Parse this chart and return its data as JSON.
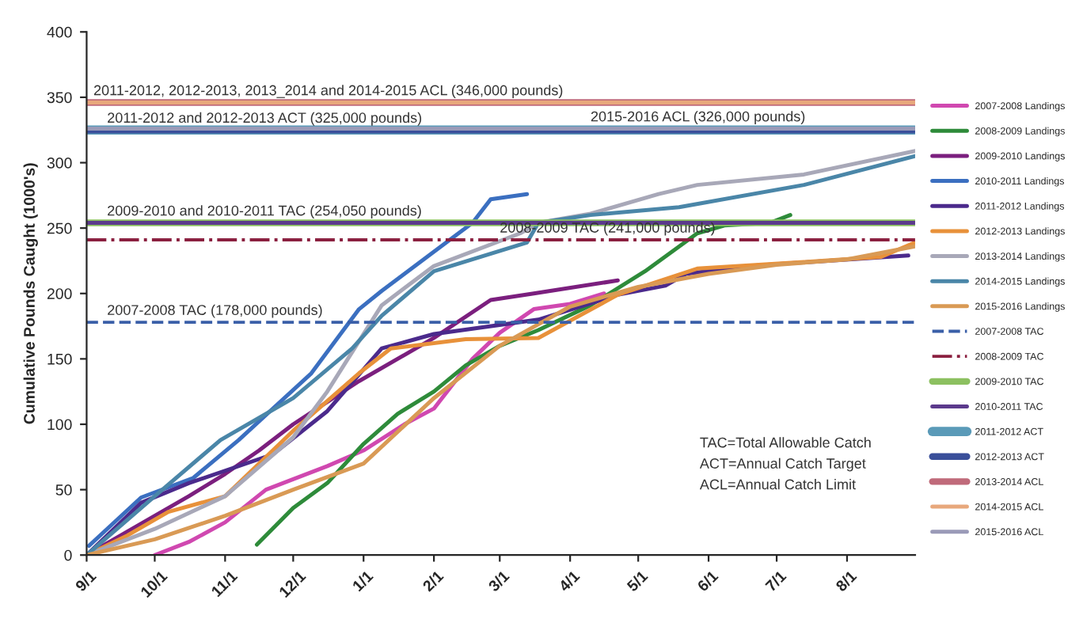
{
  "chart_data": {
    "type": "line",
    "ylabel": "Cumulative Pounds Caught (1000's)",
    "xlim": [
      "2015-09-01",
      "2016-08-31"
    ],
    "xticks": [
      {
        "value": "2015-09-01",
        "label": "9/1"
      },
      {
        "value": "2015-10-01",
        "label": "10/1"
      },
      {
        "value": "2015-11-01",
        "label": "11/1"
      },
      {
        "value": "2015-12-01",
        "label": "12/1"
      },
      {
        "value": "2016-01-01",
        "label": "1/1"
      },
      {
        "value": "2016-02-01",
        "label": "2/1"
      },
      {
        "value": "2016-03-01",
        "label": "3/1"
      },
      {
        "value": "2016-04-01",
        "label": "4/1"
      },
      {
        "value": "2016-05-01",
        "label": "5/1"
      },
      {
        "value": "2016-06-01",
        "label": "6/1"
      },
      {
        "value": "2016-07-01",
        "label": "7/1"
      },
      {
        "value": "2016-08-01",
        "label": "8/1"
      }
    ],
    "ylim": [
      0,
      400
    ],
    "yticks": [
      0,
      50,
      100,
      150,
      200,
      250,
      300,
      350,
      400
    ],
    "grid": false,
    "legend": "right",
    "series": [
      {
        "name": "2007-2008 Landings",
        "color": "#d048b0",
        "line_style": "solid",
        "x": [
          "2015-10-01",
          "2015-10-16",
          "2015-11-01",
          "2015-11-19",
          "2015-12-01",
          "2015-12-16",
          "2016-01-01",
          "2016-01-19",
          "2016-02-01",
          "2016-02-18",
          "2016-03-01",
          "2016-03-16",
          "2016-04-01",
          "2016-04-16"
        ],
        "values": [
          0,
          10,
          25,
          50,
          58,
          68,
          80,
          100,
          112,
          150,
          170,
          188,
          192,
          200
        ]
      },
      {
        "name": "2008-2009 Landings",
        "color": "#2e8b3a",
        "line_style": "solid",
        "x": [
          "2015-11-15",
          "2015-12-01",
          "2015-12-16",
          "2016-01-01",
          "2016-01-16",
          "2016-02-01",
          "2016-02-15",
          "2016-03-01",
          "2016-03-18",
          "2016-04-10",
          "2016-05-04",
          "2016-05-27",
          "2016-06-08",
          "2016-06-28",
          "2016-07-07"
        ],
        "values": [
          8,
          36,
          55,
          85,
          108,
          125,
          145,
          160,
          172,
          191,
          217,
          246,
          252,
          254,
          260
        ]
      },
      {
        "name": "2009-2010 Landings",
        "color": "#7b1f7e",
        "line_style": "solid",
        "x": [
          "2015-09-01",
          "2015-09-16",
          "2015-10-01",
          "2015-10-16",
          "2015-11-01",
          "2015-11-16",
          "2015-12-01",
          "2015-12-30",
          "2016-02-01",
          "2016-02-26",
          "2016-03-16",
          "2016-04-22"
        ],
        "values": [
          0,
          15,
          30,
          45,
          62,
          80,
          100,
          133,
          166,
          195,
          200,
          210
        ]
      },
      {
        "name": "2010-2011 Landings",
        "color": "#3b6fc0",
        "line_style": "solid",
        "x": [
          "2015-09-02",
          "2015-09-25",
          "2015-10-18",
          "2015-11-07",
          "2015-12-09",
          "2015-12-30",
          "2016-01-09",
          "2016-02-01",
          "2016-02-18",
          "2016-02-26",
          "2016-03-13"
        ],
        "values": [
          7,
          44,
          59,
          88,
          139,
          188,
          202,
          232,
          254,
          272,
          276
        ]
      },
      {
        "name": "2011-2012 Landings",
        "color": "#4b2a8c",
        "line_style": "solid",
        "x": [
          "2015-09-01",
          "2015-09-25",
          "2015-10-16",
          "2015-11-22",
          "2015-12-16",
          "2016-01-09",
          "2016-02-01",
          "2016-03-18",
          "2016-04-22",
          "2016-05-13",
          "2016-05-22",
          "2016-06-19",
          "2016-08-28"
        ],
        "values": [
          0,
          40,
          55,
          77,
          110,
          158,
          169,
          180,
          199,
          206,
          215,
          221,
          229
        ]
      },
      {
        "name": "2012-2013 Landings",
        "color": "#e8913a",
        "line_style": "solid",
        "x": [
          "2015-09-01",
          "2015-09-19",
          "2015-10-07",
          "2015-11-01",
          "2015-12-01",
          "2015-12-30",
          "2016-01-13",
          "2016-02-15",
          "2016-03-18",
          "2016-04-22",
          "2016-05-27",
          "2016-07-13",
          "2016-08-16",
          "2016-08-31"
        ],
        "values": [
          0,
          15,
          33,
          45,
          95,
          139,
          158,
          165,
          166,
          199,
          219,
          224,
          228,
          239
        ]
      },
      {
        "name": "2013-2014 Landings",
        "color": "#a8a8b8",
        "line_style": "solid",
        "x": [
          "2015-09-01",
          "2015-10-01",
          "2015-11-01",
          "2015-12-01",
          "2015-12-16",
          "2016-01-09",
          "2016-02-01",
          "2016-03-10",
          "2016-03-18",
          "2016-04-10",
          "2016-05-10",
          "2016-05-27",
          "2016-07-13",
          "2016-08-31"
        ],
        "values": [
          0,
          20,
          45,
          90,
          125,
          191,
          221,
          246,
          254,
          261,
          276,
          283,
          291,
          309
        ]
      },
      {
        "name": "2014-2015 Landings",
        "color": "#4a86a8",
        "line_style": "solid",
        "x": [
          "2015-09-01",
          "2015-10-01",
          "2015-10-30",
          "2015-12-01",
          "2015-12-27",
          "2016-01-09",
          "2016-02-01",
          "2016-03-13",
          "2016-03-18",
          "2016-04-10",
          "2016-05-19",
          "2016-07-13",
          "2016-08-31"
        ],
        "values": [
          0,
          45,
          88,
          120,
          158,
          183,
          217,
          239,
          254,
          260,
          266,
          283,
          305
        ]
      },
      {
        "name": "2015-2016 Landings",
        "color": "#d99a55",
        "line_style": "solid",
        "x": [
          "2015-09-01",
          "2015-10-01",
          "2015-11-01",
          "2015-12-01",
          "2016-01-01",
          "2016-02-01",
          "2016-03-01",
          "2016-04-01",
          "2016-05-01",
          "2016-06-01",
          "2016-07-01",
          "2016-08-01",
          "2016-08-31"
        ],
        "values": [
          0,
          12,
          30,
          50,
          70,
          120,
          160,
          190,
          205,
          215,
          222,
          226,
          236
        ]
      },
      {
        "name": "2007-2008 TAC",
        "color": "#3a5fa8",
        "line_style": "dashed",
        "x": [
          "2015-09-01",
          "2016-08-31"
        ],
        "values": [
          178,
          178
        ]
      },
      {
        "name": "2008-2009 TAC",
        "color": "#8b2040",
        "line_style": "dashdot",
        "x": [
          "2015-09-01",
          "2016-08-31"
        ],
        "values": [
          241,
          241
        ]
      },
      {
        "name": "2009-2010 TAC",
        "color": "#8cc060",
        "line_style": "solid",
        "x": [
          "2015-09-01",
          "2016-08-31"
        ],
        "values": [
          254,
          254
        ]
      },
      {
        "name": "2010-2011 TAC",
        "color": "#5b3a8c",
        "line_style": "solid",
        "x": [
          "2015-09-01",
          "2016-08-31"
        ],
        "values": [
          254,
          254
        ]
      },
      {
        "name": "2011-2012 ACT",
        "color": "#5a9ab8",
        "line_style": "solid",
        "x": [
          "2015-09-01",
          "2016-08-31"
        ],
        "values": [
          325,
          325
        ]
      },
      {
        "name": "2012-2013 ACT",
        "color": "#3a4f9a",
        "line_style": "solid",
        "x": [
          "2015-09-01",
          "2016-08-31"
        ],
        "values": [
          325,
          325
        ]
      },
      {
        "name": "2013-2014 ACL",
        "color": "#c06a7a",
        "line_style": "solid",
        "x": [
          "2015-09-01",
          "2016-08-31"
        ],
        "values": [
          346,
          346
        ]
      },
      {
        "name": "2014-2015 ACL",
        "color": "#e8a87c",
        "line_style": "solid",
        "x": [
          "2015-09-01",
          "2016-08-31"
        ],
        "values": [
          346,
          346
        ]
      },
      {
        "name": "2015-2016 ACL",
        "color": "#9a9ab8",
        "line_style": "solid",
        "x": [
          "2015-09-01",
          "2016-08-31"
        ],
        "values": [
          326,
          326
        ]
      }
    ],
    "annotations": [
      {
        "text": "2011-2012, 2012-2013, 2013_2014 and 2014-2015 ACL (346,000 pounds)",
        "x": "2015-09-04",
        "y": 346
      },
      {
        "text": "2011-2012 and 2012-2013 ACT (325,000 pounds)",
        "x": "2015-09-10",
        "y": 325
      },
      {
        "text": "2015-2016 ACL (326,000 pounds)",
        "x": "2016-04-10",
        "y": 326
      },
      {
        "text": "2009-2010 and 2010-2011 TAC (254,050 pounds)",
        "x": "2015-09-10",
        "y": 254
      },
      {
        "text": "2008-2009 TAC (241,000 pounds)",
        "x": "2016-03-01",
        "y": 241
      },
      {
        "text": "2007-2008 TAC (178,000 pounds)",
        "x": "2015-09-10",
        "y": 178
      },
      "TAC=Total Allowable Catch",
      "ACT=Annual Catch Target",
      "ACL=Annual Catch Limit"
    ]
  }
}
